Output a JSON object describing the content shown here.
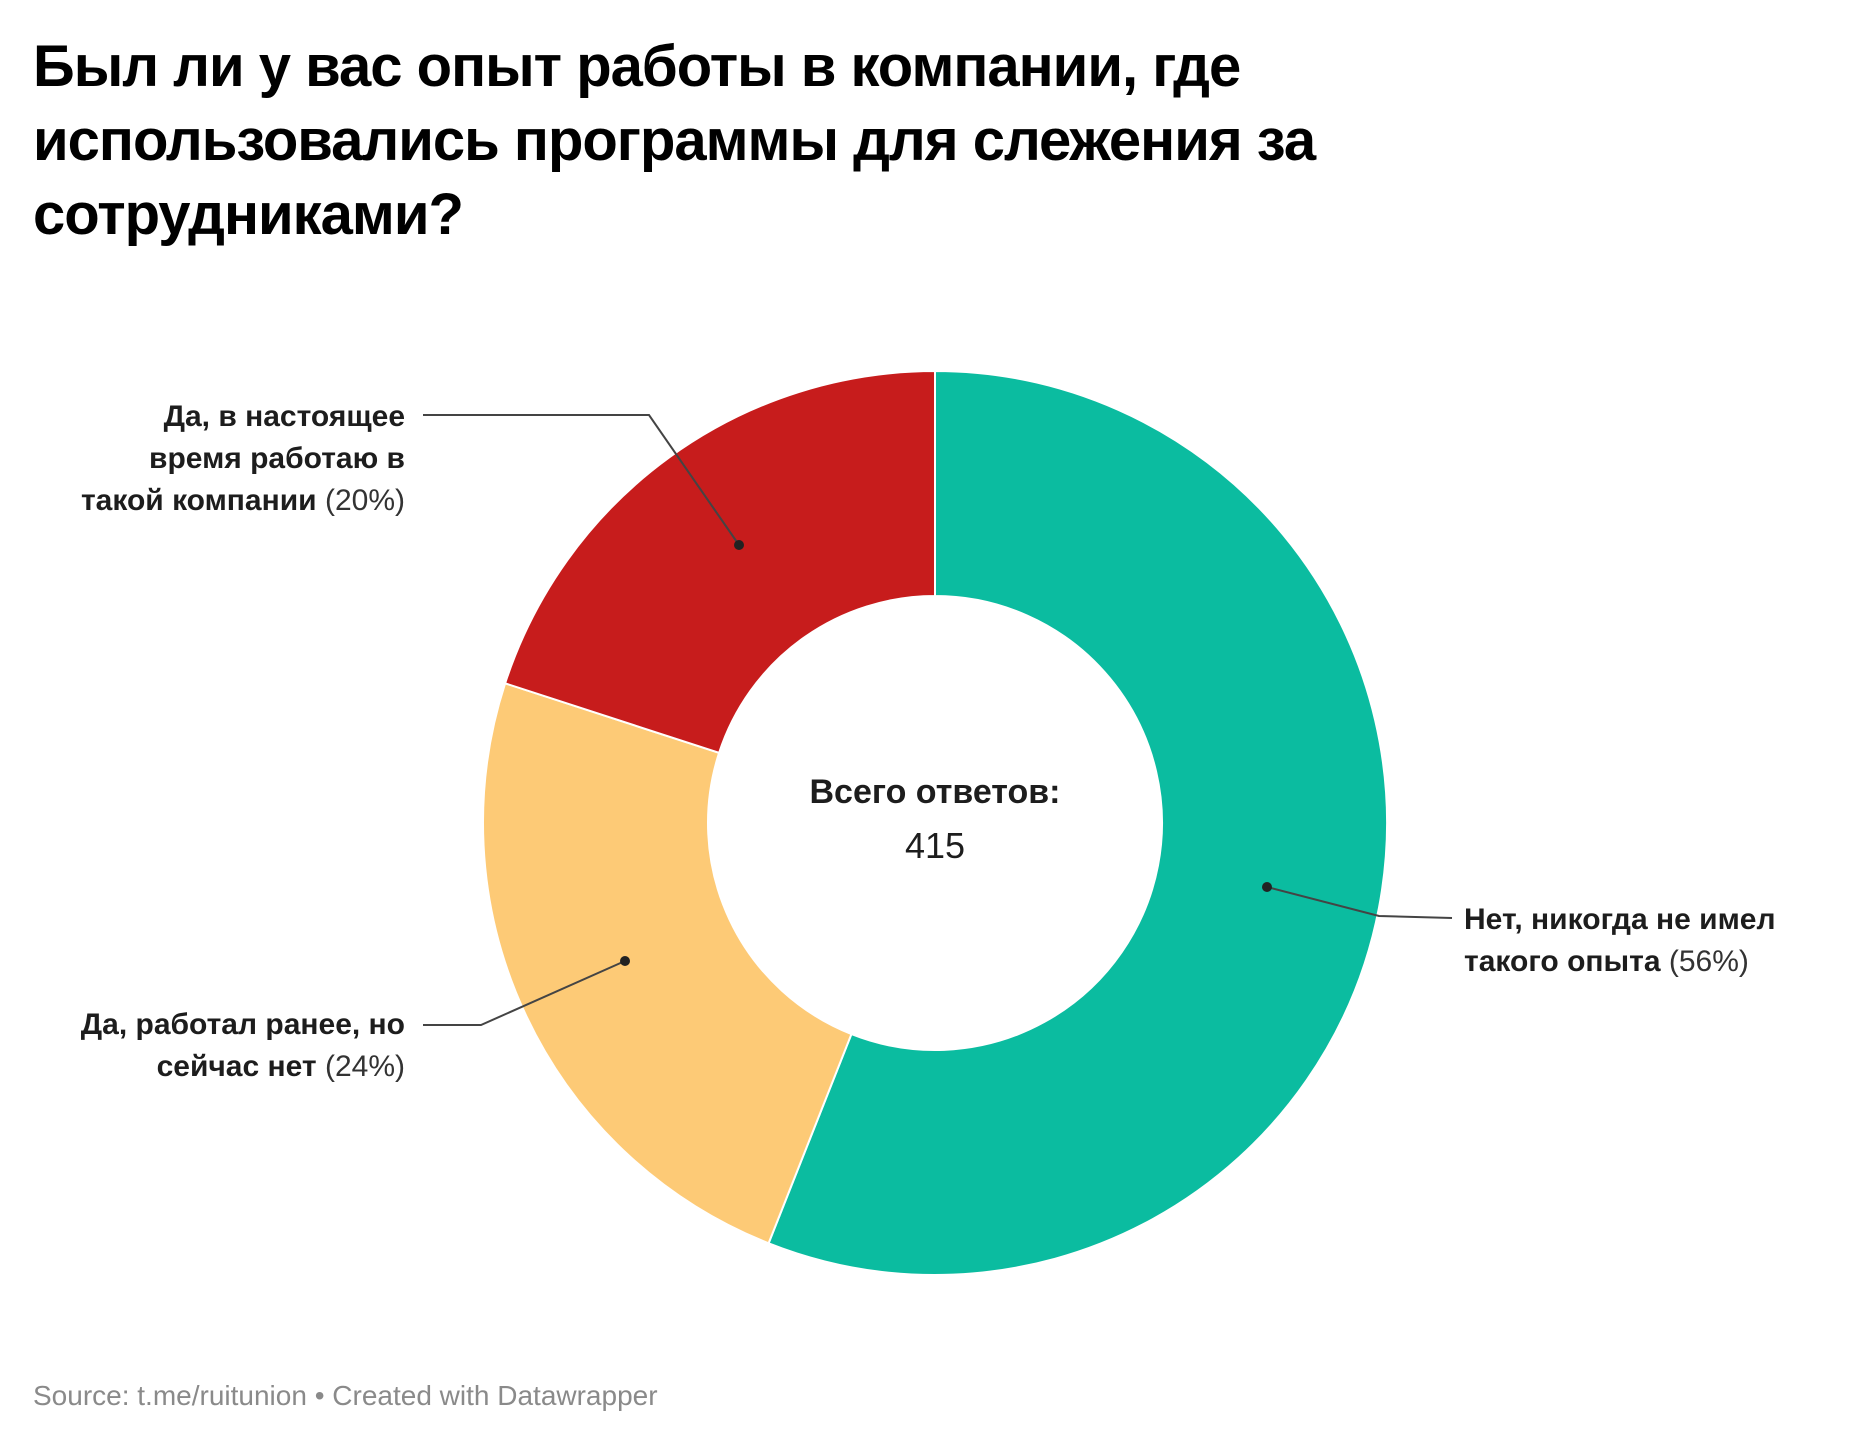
{
  "title": "Был ли у вас опыт работы в компании, где использовались программы для слежения за сотрудниками?",
  "center": {
    "label": "Всего ответов:",
    "value": "415"
  },
  "footer": "Source: t.me/ruitunion • Created with Datawrapper",
  "chart_data": {
    "type": "pie",
    "donut": true,
    "title": "Был ли у вас опыт работы в компании, где использовались программы для слежения за сотрудниками?",
    "slices": [
      {
        "label": "Нет, никогда не имел такого опыта",
        "label_line1": "Нет, никогда не имел",
        "label_line2": "такого опыта",
        "value": 56,
        "percent_text": "(56%)",
        "color": "#0bbca0"
      },
      {
        "label": "Да, работал ранее, но сейчас нет",
        "label_line1": "Да, работал ранее, но",
        "label_line2": "сейчас нет",
        "value": 24,
        "percent_text": "(24%)",
        "color": "#fdca76"
      },
      {
        "label": "Да, в настоящее время работаю в такой компании",
        "label_line1": "Да, в настоящее",
        "label_line2": "время работаю в",
        "label_line3": "такой компании",
        "value": 20,
        "percent_text": "(20%)",
        "color": "#c71c1c"
      }
    ],
    "total": 415,
    "legend": "none"
  }
}
